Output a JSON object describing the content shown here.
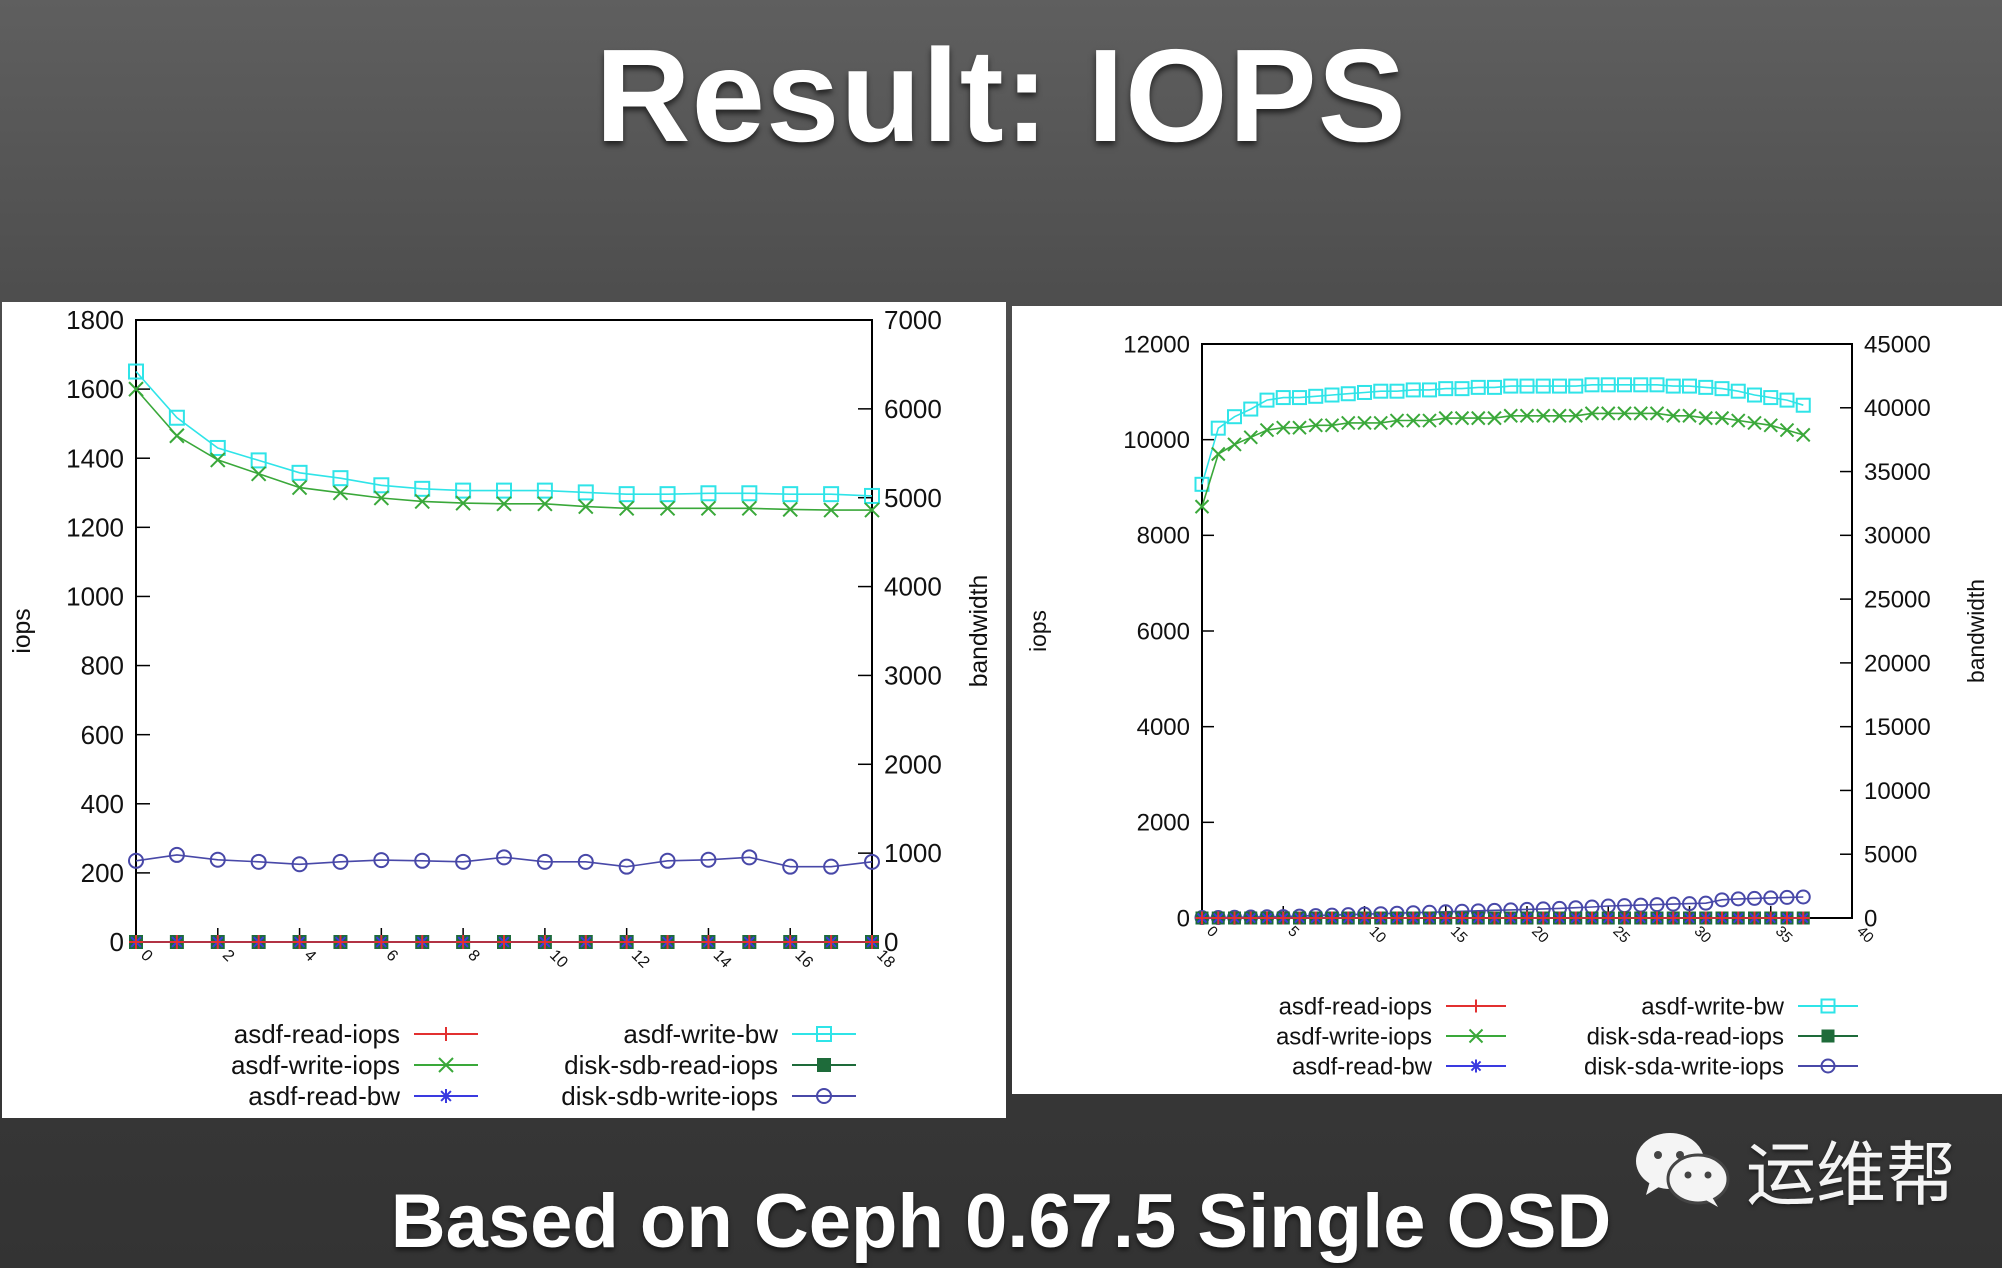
{
  "slide": {
    "title": "Result: IOPS",
    "subtitle": "Based on Ceph 0.67.5 Single OSD",
    "watermark": {
      "icon": "wechat-icon",
      "text": "运维帮"
    }
  },
  "colors": {
    "asdf-read-iops": "#e23030",
    "asdf-write-iops": "#3aa83a",
    "asdf-read-bw": "#3a3ae0",
    "asdf-write-bw": "#2fe4e8",
    "disk-read-iops": "#1e6b3a",
    "disk-write-iops": "#4848a8"
  },
  "chart_data": [
    {
      "type": "line",
      "ylabel": "iops",
      "y2label": "bandwidth",
      "xlim": [
        0,
        18
      ],
      "ylim": [
        0,
        1800
      ],
      "y2lim": [
        0,
        7000
      ],
      "xticks": [
        "0",
        "2",
        "4",
        "6",
        "8",
        "10",
        "12",
        "14",
        "16",
        "18"
      ],
      "yticks": [
        "0",
        "200",
        "400",
        "600",
        "800",
        "1000",
        "1200",
        "1400",
        "1600",
        "1800"
      ],
      "y2ticks": [
        "0",
        "1000",
        "2000",
        "3000",
        "4000",
        "5000",
        "6000",
        "7000"
      ],
      "x": [
        0,
        1,
        2,
        3,
        4,
        5,
        6,
        7,
        8,
        9,
        10,
        11,
        12,
        13,
        14,
        15,
        16,
        17,
        18
      ],
      "legend": "bottom",
      "series": [
        {
          "name": "asdf-read-iops",
          "axis": "y",
          "marker": "plus",
          "values": [
            0,
            0,
            0,
            0,
            0,
            0,
            0,
            0,
            0,
            0,
            0,
            0,
            0,
            0,
            0,
            0,
            0,
            0,
            0
          ]
        },
        {
          "name": "asdf-write-iops",
          "axis": "y",
          "marker": "x",
          "values": [
            1600,
            1465,
            1395,
            1355,
            1315,
            1300,
            1285,
            1275,
            1270,
            1268,
            1268,
            1260,
            1255,
            1255,
            1255,
            1255,
            1252,
            1250,
            1250
          ]
        },
        {
          "name": "asdf-read-bw",
          "axis": "y2",
          "marker": "star",
          "values": [
            0,
            0,
            0,
            0,
            0,
            0,
            0,
            0,
            0,
            0,
            0,
            0,
            0,
            0,
            0,
            0,
            0,
            0,
            0
          ]
        },
        {
          "name": "asdf-write-bw",
          "axis": "y2",
          "marker": "square",
          "values": [
            6420,
            5900,
            5560,
            5420,
            5280,
            5220,
            5140,
            5100,
            5080,
            5080,
            5080,
            5060,
            5040,
            5040,
            5050,
            5050,
            5040,
            5040,
            5020
          ]
        },
        {
          "name": "disk-sdb-read-iops",
          "axis": "y",
          "marker": "filled-square",
          "values": [
            0,
            0,
            0,
            0,
            0,
            0,
            0,
            0,
            0,
            0,
            0,
            0,
            0,
            0,
            0,
            0,
            0,
            0,
            0
          ]
        },
        {
          "name": "disk-sdb-write-iops",
          "axis": "y",
          "marker": "circle",
          "values": [
            235,
            252,
            238,
            232,
            225,
            232,
            237,
            235,
            232,
            245,
            232,
            232,
            218,
            235,
            238,
            245,
            218,
            218,
            232
          ]
        }
      ]
    },
    {
      "type": "line",
      "ylabel": "iops",
      "y2label": "bandwidth",
      "xlim": [
        0,
        40
      ],
      "ylim": [
        0,
        12000
      ],
      "y2lim": [
        0,
        45000
      ],
      "xticks": [
        "0",
        "5",
        "10",
        "15",
        "20",
        "25",
        "30",
        "35",
        "40"
      ],
      "yticks": [
        "0",
        "2000",
        "4000",
        "6000",
        "8000",
        "10000",
        "12000"
      ],
      "y2ticks": [
        "0",
        "5000",
        "10000",
        "15000",
        "20000",
        "25000",
        "30000",
        "35000",
        "40000",
        "45000"
      ],
      "x": [
        0,
        1,
        2,
        3,
        4,
        5,
        6,
        7,
        8,
        9,
        10,
        11,
        12,
        13,
        14,
        15,
        16,
        17,
        18,
        19,
        20,
        21,
        22,
        23,
        24,
        25,
        26,
        27,
        28,
        29,
        30,
        31,
        32,
        33,
        34,
        35,
        36,
        37
      ],
      "legend": "bottom",
      "series": [
        {
          "name": "asdf-read-iops",
          "axis": "y",
          "marker": "plus",
          "values": [
            0,
            0,
            0,
            0,
            0,
            0,
            0,
            0,
            0,
            0,
            0,
            0,
            0,
            0,
            0,
            0,
            0,
            0,
            0,
            0,
            0,
            0,
            0,
            0,
            0,
            0,
            0,
            0,
            0,
            0,
            0,
            0,
            0,
            0,
            0,
            0,
            0,
            0
          ]
        },
        {
          "name": "asdf-write-iops",
          "axis": "y",
          "marker": "x",
          "values": [
            8600,
            9700,
            9900,
            10050,
            10200,
            10250,
            10250,
            10300,
            10300,
            10350,
            10350,
            10350,
            10400,
            10400,
            10400,
            10450,
            10450,
            10450,
            10450,
            10500,
            10500,
            10500,
            10500,
            10500,
            10550,
            10550,
            10550,
            10550,
            10550,
            10500,
            10500,
            10450,
            10450,
            10400,
            10350,
            10300,
            10200,
            10100
          ]
        },
        {
          "name": "asdf-read-bw",
          "axis": "y2",
          "marker": "star",
          "values": [
            0,
            0,
            0,
            0,
            0,
            0,
            0,
            0,
            0,
            0,
            0,
            0,
            0,
            0,
            0,
            0,
            0,
            0,
            0,
            0,
            0,
            0,
            0,
            0,
            0,
            0,
            0,
            0,
            0,
            0,
            0,
            0,
            0,
            0,
            0,
            0,
            0,
            0
          ]
        },
        {
          "name": "asdf-write-bw",
          "axis": "y2",
          "marker": "square",
          "values": [
            34000,
            38400,
            39300,
            39900,
            40600,
            40800,
            40800,
            40900,
            41000,
            41100,
            41200,
            41300,
            41300,
            41400,
            41400,
            41500,
            41500,
            41600,
            41600,
            41700,
            41700,
            41700,
            41700,
            41700,
            41800,
            41800,
            41800,
            41800,
            41800,
            41700,
            41700,
            41600,
            41500,
            41300,
            41000,
            40800,
            40600,
            40200
          ]
        },
        {
          "name": "disk-sda-read-iops",
          "axis": "y",
          "marker": "filled-square",
          "values": [
            0,
            0,
            0,
            0,
            0,
            0,
            0,
            0,
            0,
            0,
            0,
            0,
            0,
            0,
            0,
            0,
            0,
            0,
            0,
            0,
            0,
            0,
            0,
            0,
            0,
            0,
            0,
            0,
            0,
            0,
            0,
            0,
            0,
            0,
            0,
            0,
            0,
            0
          ]
        },
        {
          "name": "disk-sda-write-iops",
          "axis": "y",
          "marker": "circle",
          "values": [
            10,
            10,
            15,
            20,
            25,
            30,
            40,
            50,
            60,
            70,
            80,
            90,
            100,
            110,
            120,
            130,
            140,
            150,
            160,
            170,
            180,
            190,
            200,
            215,
            230,
            250,
            260,
            270,
            280,
            290,
            300,
            310,
            380,
            400,
            410,
            420,
            430,
            440
          ]
        }
      ]
    }
  ]
}
